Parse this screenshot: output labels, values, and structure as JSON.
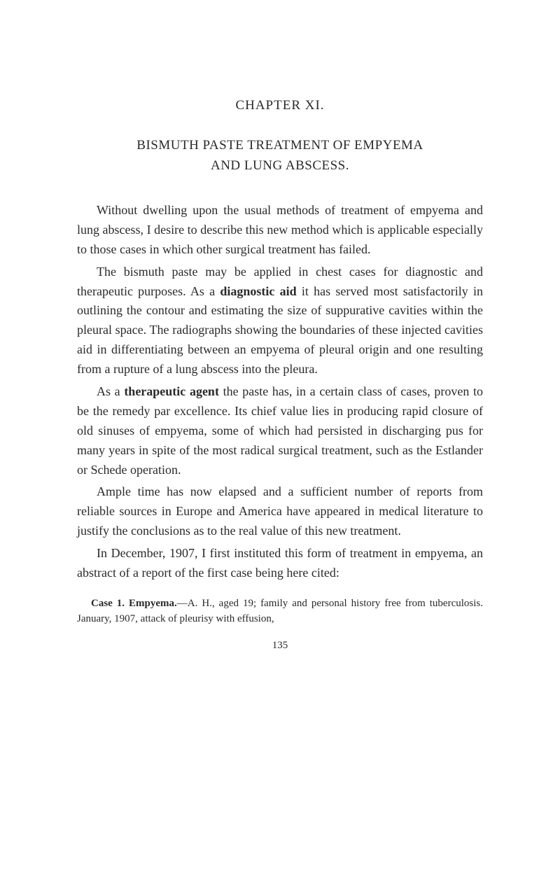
{
  "chapter_heading": "CHAPTER XI.",
  "title_line1": "BISMUTH PASTE TREATMENT OF EMPYEMA",
  "title_line2": "AND LUNG ABSCESS.",
  "para1": "Without dwelling upon the usual methods of treatment of empyema and lung abscess, I desire to describe this new method which is applicable especially to those cases in which other surgical treatment has failed.",
  "para2_pre": "The bismuth paste may be applied in chest cases for diagnostic and therapeutic purposes. As a ",
  "para2_bold1": "diagnostic aid",
  "para2_post": " it has served most satisfactorily in outlining the con­tour and estimating the size of suppurative cavities with­in the pleural space. The radiographs showing the boundaries of these injected cavities aid in differentiat­ing between an empyema of pleural origin and one re­sulting from a rupture of a lung abscess into the pleura.",
  "para3_pre": "As a ",
  "para3_bold": "therapeutic agent",
  "para3_post": " the paste has, in a certain class of cases, proven to be the remedy par excellence. Its chief value lies in producing rapid closure of old sinuses of empyema, some of which had persisted in discharging pus for many years in spite of the most radical surgical treatment, such as the Estlander or Schede operation.",
  "para4": "Ample time has now elapsed and a sufficient number of reports from reliable sources in Europe and America have appeared in medical literature to justify the con­clusions as to the real value of this new treatment.",
  "para5": "In December, 1907, I first instituted this form of treat­ment in empyema, an abstract of a report of the first case being here cited:",
  "case_bold": "Case 1. Empyema.",
  "case_text": "—A. H., aged 19; family and personal history free from tuberculosis. January, 1907, attack of pleurisy with effusion,",
  "page_number": "135",
  "colors": {
    "background": "#ffffff",
    "text": "#2a2a2a"
  },
  "typography": {
    "body_fontsize": 18,
    "heading_fontsize": 19,
    "case_fontsize": 15,
    "font_family": "Georgia, Times New Roman, serif"
  }
}
